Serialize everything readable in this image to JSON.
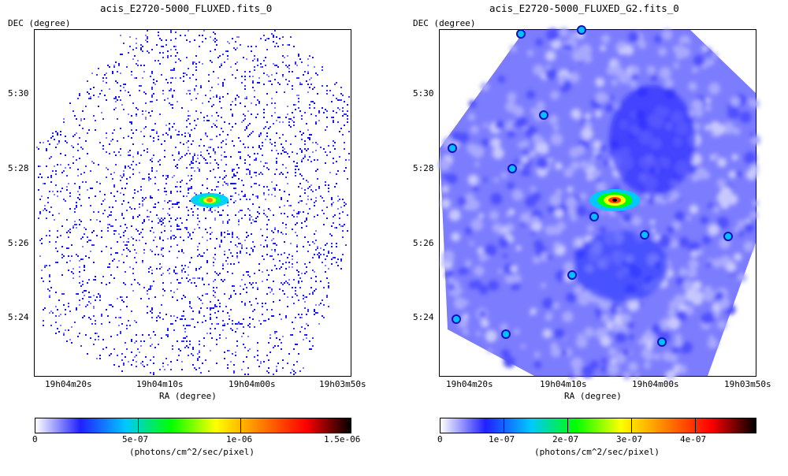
{
  "panels": [
    {
      "title": "acis_E2720-5000_FLUXED.fits_0",
      "dec_label": "DEC (degree)",
      "ra_label": "RA (degree)",
      "dec_ticks": [
        "5:30",
        "5:28",
        "5:26",
        "5:24"
      ],
      "ra_ticks": [
        "19h04m20s",
        "19h04m10s",
        "19h04m00s",
        "19h03m50s"
      ],
      "colorbar_ticks": [
        "0",
        "5e-07",
        "1e-06",
        "1.5e-06"
      ],
      "colorbar_label": "(photons/cm^2/sec/pixel)",
      "colorbar_max": 1.5e-06
    },
    {
      "title": "acis_E2720-5000_FLUXED_G2.fits_0",
      "dec_label": "DEC (degree)",
      "ra_label": "RA (degree)",
      "dec_ticks": [
        "5:30",
        "5:28",
        "5:26",
        "5:24"
      ],
      "ra_ticks": [
        "19h04m20s",
        "19h04m10s",
        "19h04m00s",
        "19h03m50s"
      ],
      "colorbar_ticks": [
        "0",
        "1e-07",
        "2e-07",
        "3e-07",
        "4e-07"
      ],
      "colorbar_label": "(photons/cm^2/sec/pixel)",
      "colorbar_max": 4.8e-07
    }
  ],
  "colormap": [
    "#ffffff",
    "#2020ff",
    "#00c8ff",
    "#00ff00",
    "#ffff00",
    "#ff8000",
    "#ff0000",
    "#000000"
  ]
}
